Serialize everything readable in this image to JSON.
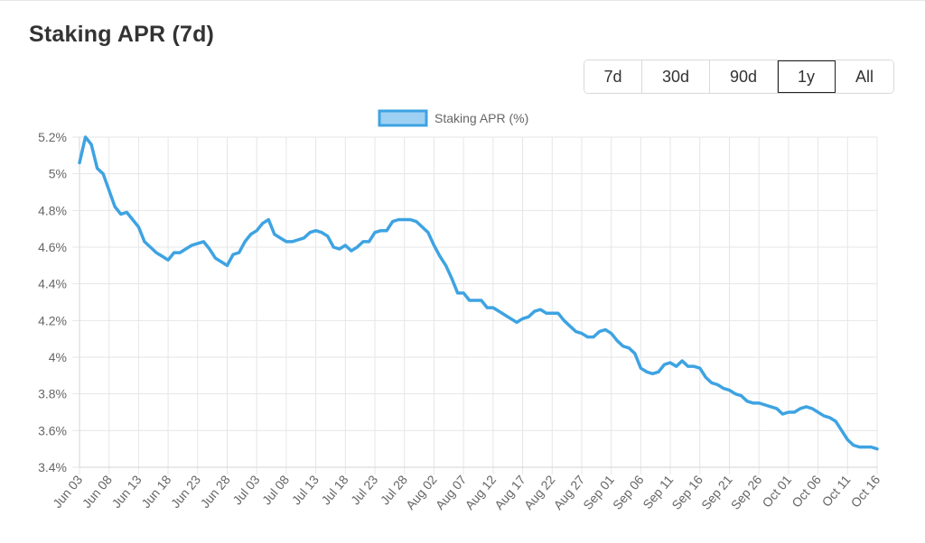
{
  "header": {
    "title": "Staking APR (7d)"
  },
  "range_selector": {
    "options": [
      "7d",
      "30d",
      "90d",
      "1y",
      "All"
    ],
    "selected": "1y"
  },
  "colors": {
    "line": "#3ea3e2",
    "legend_fill": "#9ed0f3",
    "grid": "#e6e6e6"
  },
  "chart_data": {
    "type": "line",
    "title": "",
    "xlabel": "",
    "ylabel": "",
    "legend": {
      "position": "top-center",
      "entries": [
        "Staking APR (%)"
      ]
    },
    "grid": true,
    "y_axis": {
      "min": 3.4,
      "max": 5.2,
      "ticks": [
        "3.4%",
        "3.6%",
        "3.8%",
        "4%",
        "4.2%",
        "4.4%",
        "4.6%",
        "4.8%",
        "5%",
        "5.2%"
      ]
    },
    "x_axis": {
      "first_date": "2023-06-03",
      "last_date": "2023-10-16",
      "tick_labels": [
        "Jun 03",
        "Jun 08",
        "Jun 13",
        "Jun 18",
        "Jun 23",
        "Jun 28",
        "Jul 03",
        "Jul 08",
        "Jul 13",
        "Jul 18",
        "Jul 23",
        "Jul 28",
        "Aug 02",
        "Aug 07",
        "Aug 12",
        "Aug 17",
        "Aug 22",
        "Aug 27",
        "Sep 01",
        "Sep 06",
        "Sep 11",
        "Sep 16",
        "Sep 21",
        "Sep 26",
        "Oct 01",
        "Oct 06",
        "Oct 11",
        "Oct 16"
      ]
    },
    "series": [
      {
        "name": "Staking APR (%)",
        "points": [
          [
            "Jun 03",
            5.06
          ],
          [
            "Jun 04",
            5.2
          ],
          [
            "Jun 05",
            5.16
          ],
          [
            "Jun 06",
            5.03
          ],
          [
            "Jun 07",
            5.0
          ],
          [
            "Jun 08",
            4.91
          ],
          [
            "Jun 09",
            4.82
          ],
          [
            "Jun 10",
            4.78
          ],
          [
            "Jun 11",
            4.79
          ],
          [
            "Jun 12",
            4.75
          ],
          [
            "Jun 13",
            4.71
          ],
          [
            "Jun 14",
            4.63
          ],
          [
            "Jun 15",
            4.6
          ],
          [
            "Jun 16",
            4.57
          ],
          [
            "Jun 17",
            4.55
          ],
          [
            "Jun 18",
            4.53
          ],
          [
            "Jun 19",
            4.57
          ],
          [
            "Jun 20",
            4.57
          ],
          [
            "Jun 21",
            4.59
          ],
          [
            "Jun 22",
            4.61
          ],
          [
            "Jun 23",
            4.62
          ],
          [
            "Jun 24",
            4.63
          ],
          [
            "Jun 25",
            4.59
          ],
          [
            "Jun 26",
            4.54
          ],
          [
            "Jun 27",
            4.52
          ],
          [
            "Jun 28",
            4.5
          ],
          [
            "Jun 29",
            4.56
          ],
          [
            "Jun 30",
            4.57
          ],
          [
            "Jul 01",
            4.63
          ],
          [
            "Jul 02",
            4.67
          ],
          [
            "Jul 03",
            4.69
          ],
          [
            "Jul 04",
            4.73
          ],
          [
            "Jul 05",
            4.75
          ],
          [
            "Jul 06",
            4.67
          ],
          [
            "Jul 07",
            4.65
          ],
          [
            "Jul 08",
            4.63
          ],
          [
            "Jul 09",
            4.63
          ],
          [
            "Jul 10",
            4.64
          ],
          [
            "Jul 11",
            4.65
          ],
          [
            "Jul 12",
            4.68
          ],
          [
            "Jul 13",
            4.69
          ],
          [
            "Jul 14",
            4.68
          ],
          [
            "Jul 15",
            4.66
          ],
          [
            "Jul 16",
            4.6
          ],
          [
            "Jul 17",
            4.59
          ],
          [
            "Jul 18",
            4.61
          ],
          [
            "Jul 19",
            4.58
          ],
          [
            "Jul 20",
            4.6
          ],
          [
            "Jul 21",
            4.63
          ],
          [
            "Jul 22",
            4.63
          ],
          [
            "Jul 23",
            4.68
          ],
          [
            "Jul 24",
            4.69
          ],
          [
            "Jul 25",
            4.69
          ],
          [
            "Jul 26",
            4.74
          ],
          [
            "Jul 27",
            4.75
          ],
          [
            "Jul 28",
            4.75
          ],
          [
            "Jul 29",
            4.75
          ],
          [
            "Jul 30",
            4.74
          ],
          [
            "Jul 31",
            4.71
          ],
          [
            "Aug 01",
            4.68
          ],
          [
            "Aug 02",
            4.61
          ],
          [
            "Aug 03",
            4.55
          ],
          [
            "Aug 04",
            4.5
          ],
          [
            "Aug 05",
            4.43
          ],
          [
            "Aug 06",
            4.35
          ],
          [
            "Aug 07",
            4.35
          ],
          [
            "Aug 08",
            4.31
          ],
          [
            "Aug 09",
            4.31
          ],
          [
            "Aug 10",
            4.31
          ],
          [
            "Aug 11",
            4.27
          ],
          [
            "Aug 12",
            4.27
          ],
          [
            "Aug 13",
            4.25
          ],
          [
            "Aug 14",
            4.23
          ],
          [
            "Aug 15",
            4.21
          ],
          [
            "Aug 16",
            4.19
          ],
          [
            "Aug 17",
            4.21
          ],
          [
            "Aug 18",
            4.22
          ],
          [
            "Aug 19",
            4.25
          ],
          [
            "Aug 20",
            4.26
          ],
          [
            "Aug 21",
            4.24
          ],
          [
            "Aug 22",
            4.24
          ],
          [
            "Aug 23",
            4.24
          ],
          [
            "Aug 24",
            4.2
          ],
          [
            "Aug 25",
            4.17
          ],
          [
            "Aug 26",
            4.14
          ],
          [
            "Aug 27",
            4.13
          ],
          [
            "Aug 28",
            4.11
          ],
          [
            "Aug 29",
            4.11
          ],
          [
            "Aug 30",
            4.14
          ],
          [
            "Aug 31",
            4.15
          ],
          [
            "Sep 01",
            4.13
          ],
          [
            "Sep 02",
            4.09
          ],
          [
            "Sep 03",
            4.06
          ],
          [
            "Sep 04",
            4.05
          ],
          [
            "Sep 05",
            4.02
          ],
          [
            "Sep 06",
            3.94
          ],
          [
            "Sep 07",
            3.92
          ],
          [
            "Sep 08",
            3.91
          ],
          [
            "Sep 09",
            3.92
          ],
          [
            "Sep 10",
            3.96
          ],
          [
            "Sep 11",
            3.97
          ],
          [
            "Sep 12",
            3.95
          ],
          [
            "Sep 13",
            3.98
          ],
          [
            "Sep 14",
            3.95
          ],
          [
            "Sep 15",
            3.95
          ],
          [
            "Sep 16",
            3.94
          ],
          [
            "Sep 17",
            3.89
          ],
          [
            "Sep 18",
            3.86
          ],
          [
            "Sep 19",
            3.85
          ],
          [
            "Sep 20",
            3.83
          ],
          [
            "Sep 21",
            3.82
          ],
          [
            "Sep 22",
            3.8
          ],
          [
            "Sep 23",
            3.79
          ],
          [
            "Sep 24",
            3.76
          ],
          [
            "Sep 25",
            3.75
          ],
          [
            "Sep 26",
            3.75
          ],
          [
            "Sep 27",
            3.74
          ],
          [
            "Sep 28",
            3.73
          ],
          [
            "Sep 29",
            3.72
          ],
          [
            "Sep 30",
            3.69
          ],
          [
            "Oct 01",
            3.7
          ],
          [
            "Oct 02",
            3.7
          ],
          [
            "Oct 03",
            3.72
          ],
          [
            "Oct 04",
            3.73
          ],
          [
            "Oct 05",
            3.72
          ],
          [
            "Oct 06",
            3.7
          ],
          [
            "Oct 07",
            3.68
          ],
          [
            "Oct 08",
            3.67
          ],
          [
            "Oct 09",
            3.65
          ],
          [
            "Oct 10",
            3.6
          ],
          [
            "Oct 11",
            3.55
          ],
          [
            "Oct 12",
            3.52
          ],
          [
            "Oct 13",
            3.51
          ],
          [
            "Oct 14",
            3.51
          ],
          [
            "Oct 15",
            3.51
          ],
          [
            "Oct 16",
            3.5
          ]
        ]
      }
    ]
  }
}
